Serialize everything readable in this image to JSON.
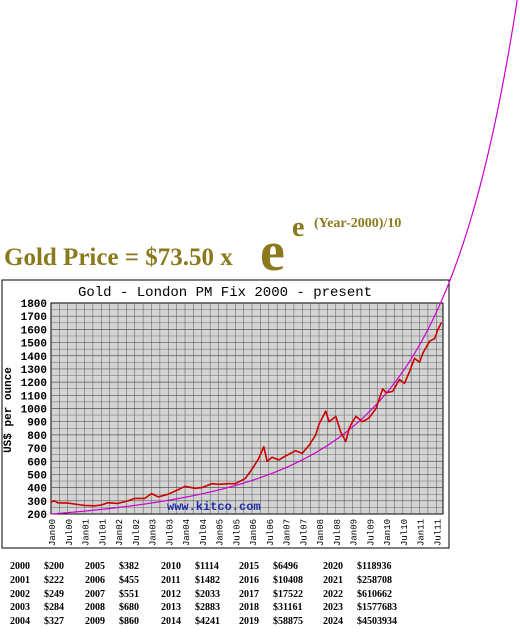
{
  "formula": {
    "lhs": "Gold Price = $73.50 x",
    "base": "e",
    "exponent_base": "e",
    "exponent_text": "(Year-2000)/10"
  },
  "chart_data": {
    "type": "line",
    "title": "Gold - London PM Fix 2000 - present",
    "ylabel": "US$ per ounce",
    "ylim": [
      200,
      1800
    ],
    "yticks": [
      200,
      300,
      400,
      500,
      600,
      700,
      800,
      900,
      1000,
      1100,
      1200,
      1300,
      1400,
      1500,
      1600,
      1700,
      1800
    ],
    "xlim": [
      2000.0,
      2011.7
    ],
    "xticks": [
      {
        "label": "Jan00",
        "t": 2000.0
      },
      {
        "label": "Jul00",
        "t": 2000.5
      },
      {
        "label": "Jan01",
        "t": 2001.0
      },
      {
        "label": "Jul01",
        "t": 2001.5
      },
      {
        "label": "Jan02",
        "t": 2002.0
      },
      {
        "label": "Jul02",
        "t": 2002.5
      },
      {
        "label": "Jan03",
        "t": 2003.0
      },
      {
        "label": "Jul03",
        "t": 2003.5
      },
      {
        "label": "Jan04",
        "t": 2004.0
      },
      {
        "label": "Jul04",
        "t": 2004.5
      },
      {
        "label": "Jan05",
        "t": 2005.0
      },
      {
        "label": "Jul05",
        "t": 2005.5
      },
      {
        "label": "Jan06",
        "t": 2006.0
      },
      {
        "label": "Jul06",
        "t": 2006.5
      },
      {
        "label": "Jan07",
        "t": 2007.0
      },
      {
        "label": "Jul07",
        "t": 2007.5
      },
      {
        "label": "Jan08",
        "t": 2008.0
      },
      {
        "label": "Jul08",
        "t": 2008.5
      },
      {
        "label": "Jan09",
        "t": 2009.0
      },
      {
        "label": "Jul09",
        "t": 2009.5
      },
      {
        "label": "Jan10",
        "t": 2010.0
      },
      {
        "label": "Jul10",
        "t": 2010.5
      },
      {
        "label": "Jan11",
        "t": 2011.0
      },
      {
        "label": "Jul11",
        "t": 2011.5
      }
    ],
    "grid": true,
    "series": [
      {
        "color": "#cc0000",
        "points": [
          [
            2000.0,
            290
          ],
          [
            2000.1,
            300
          ],
          [
            2000.2,
            285
          ],
          [
            2000.5,
            283
          ],
          [
            2000.8,
            272
          ],
          [
            2001.0,
            265
          ],
          [
            2001.3,
            262
          ],
          [
            2001.5,
            268
          ],
          [
            2001.7,
            285
          ],
          [
            2002.0,
            280
          ],
          [
            2002.3,
            300
          ],
          [
            2002.5,
            318
          ],
          [
            2002.8,
            318
          ],
          [
            2003.0,
            355
          ],
          [
            2003.2,
            330
          ],
          [
            2003.5,
            350
          ],
          [
            2003.8,
            385
          ],
          [
            2004.0,
            410
          ],
          [
            2004.3,
            395
          ],
          [
            2004.5,
            400
          ],
          [
            2004.8,
            430
          ],
          [
            2005.0,
            425
          ],
          [
            2005.3,
            430
          ],
          [
            2005.5,
            430
          ],
          [
            2005.8,
            470
          ],
          [
            2006.0,
            540
          ],
          [
            2006.2,
            620
          ],
          [
            2006.35,
            710
          ],
          [
            2006.45,
            600
          ],
          [
            2006.6,
            630
          ],
          [
            2006.8,
            610
          ],
          [
            2007.0,
            640
          ],
          [
            2007.3,
            680
          ],
          [
            2007.5,
            660
          ],
          [
            2007.7,
            720
          ],
          [
            2007.9,
            800
          ],
          [
            2008.0,
            880
          ],
          [
            2008.2,
            980
          ],
          [
            2008.3,
            900
          ],
          [
            2008.5,
            940
          ],
          [
            2008.65,
            820
          ],
          [
            2008.8,
            750
          ],
          [
            2008.9,
            850
          ],
          [
            2009.0,
            900
          ],
          [
            2009.1,
            940
          ],
          [
            2009.3,
            900
          ],
          [
            2009.5,
            930
          ],
          [
            2009.7,
            1000
          ],
          [
            2009.9,
            1150
          ],
          [
            2010.0,
            1120
          ],
          [
            2010.2,
            1130
          ],
          [
            2010.4,
            1220
          ],
          [
            2010.55,
            1190
          ],
          [
            2010.7,
            1280
          ],
          [
            2010.85,
            1380
          ],
          [
            2011.0,
            1350
          ],
          [
            2011.1,
            1420
          ],
          [
            2011.3,
            1510
          ],
          [
            2011.45,
            1530
          ],
          [
            2011.55,
            1600
          ],
          [
            2011.65,
            1650
          ]
        ]
      },
      {
        "color": "#cc00cc",
        "model": "73.50 * e^(e^((Year-2000)/10))",
        "points": []
      }
    ]
  },
  "watermark": "www.kitco.com",
  "projection_table": [
    [
      {
        "year": "2000",
        "price": "$200"
      },
      {
        "year": "2001",
        "price": "$222"
      },
      {
        "year": "2002",
        "price": "$249"
      },
      {
        "year": "2003",
        "price": "$284"
      },
      {
        "year": "2004",
        "price": "$327"
      }
    ],
    [
      {
        "year": "2005",
        "price": "$382"
      },
      {
        "year": "2006",
        "price": "$455"
      },
      {
        "year": "2007",
        "price": "$551"
      },
      {
        "year": "2008",
        "price": "$680"
      },
      {
        "year": "2009",
        "price": "$860"
      }
    ],
    [
      {
        "year": "2010",
        "price": "$1114"
      },
      {
        "year": "2011",
        "price": "$1482"
      },
      {
        "year": "2012",
        "price": "$2033"
      },
      {
        "year": "2013",
        "price": "$2883"
      },
      {
        "year": "2014",
        "price": "$4241"
      }
    ],
    [
      {
        "year": "2015",
        "price": "$6496"
      },
      {
        "year": "2016",
        "price": "$10408"
      },
      {
        "year": "2017",
        "price": "$17522"
      },
      {
        "year": "2018",
        "price": "$31161"
      },
      {
        "year": "2019",
        "price": "$58875"
      }
    ],
    [
      {
        "year": "2020",
        "price": "$118936"
      },
      {
        "year": "2021",
        "price": "$258708"
      },
      {
        "year": "2022",
        "price": "$610662"
      },
      {
        "year": "2023",
        "price": "$1577683"
      },
      {
        "year": "2024",
        "price": "$4503934"
      }
    ]
  ],
  "colors": {
    "formula_text": "#8a7a1c",
    "actual_price_line": "#cc0000",
    "model_curve": "#cc00cc",
    "plot_background": "#d4d4d4",
    "grid": "#555555",
    "watermark": "#1c2fa8"
  }
}
